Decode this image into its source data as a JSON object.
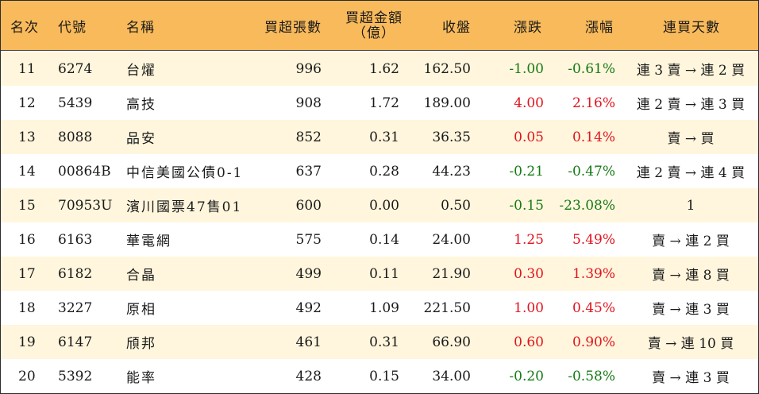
{
  "headers": {
    "rank": "名次",
    "code": "代號",
    "name": "名稱",
    "net_buy_lots": "買超張數",
    "net_buy_amount_line1": "買超金額",
    "net_buy_amount_line2": "（億）",
    "close": "收盤",
    "change": "漲跌",
    "change_pct": "漲幅",
    "streak": "連買天數"
  },
  "rows": [
    {
      "rank": "11",
      "code": "6274",
      "name": "台燿",
      "lots": "996",
      "amount": "1.62",
      "close": "162.50",
      "change": "-1.00",
      "pct": "-0.61%",
      "streak": "連 3 賣 → 連 2 買",
      "dir": "neg"
    },
    {
      "rank": "12",
      "code": "5439",
      "name": "高技",
      "lots": "908",
      "amount": "1.72",
      "close": "189.00",
      "change": "4.00",
      "pct": "2.16%",
      "streak": "連 2 賣 → 連 3 買",
      "dir": "pos"
    },
    {
      "rank": "13",
      "code": "8088",
      "name": "品安",
      "lots": "852",
      "amount": "0.31",
      "close": "36.35",
      "change": "0.05",
      "pct": "0.14%",
      "streak": "賣 → 買",
      "dir": "pos"
    },
    {
      "rank": "14",
      "code": "00864B",
      "name": "中信美國公債0-1",
      "lots": "637",
      "amount": "0.28",
      "close": "44.23",
      "change": "-0.21",
      "pct": "-0.47%",
      "streak": "連 2 賣 → 連 4 買",
      "dir": "neg"
    },
    {
      "rank": "15",
      "code": "70953U",
      "name": "濱川國票47售01",
      "lots": "600",
      "amount": "0.00",
      "close": "0.50",
      "change": "-0.15",
      "pct": "-23.08%",
      "streak": "1",
      "dir": "neg"
    },
    {
      "rank": "16",
      "code": "6163",
      "name": "華電網",
      "lots": "575",
      "amount": "0.14",
      "close": "24.00",
      "change": "1.25",
      "pct": "5.49%",
      "streak": "賣 → 連 2 買",
      "dir": "pos"
    },
    {
      "rank": "17",
      "code": "6182",
      "name": "合晶",
      "lots": "499",
      "amount": "0.11",
      "close": "21.90",
      "change": "0.30",
      "pct": "1.39%",
      "streak": "賣 → 連 8 買",
      "dir": "pos"
    },
    {
      "rank": "18",
      "code": "3227",
      "name": "原相",
      "lots": "492",
      "amount": "1.09",
      "close": "221.50",
      "change": "1.00",
      "pct": "0.45%",
      "streak": "賣 → 連 3 買",
      "dir": "pos"
    },
    {
      "rank": "19",
      "code": "6147",
      "name": "頎邦",
      "lots": "461",
      "amount": "0.31",
      "close": "66.90",
      "change": "0.60",
      "pct": "0.90%",
      "streak": "賣 → 連 10 買",
      "dir": "pos"
    },
    {
      "rank": "20",
      "code": "5392",
      "name": "能率",
      "lots": "428",
      "amount": "0.15",
      "close": "34.00",
      "change": "-0.20",
      "pct": "-0.58%",
      "streak": "賣 → 連 3 買",
      "dir": "neg"
    }
  ],
  "colors": {
    "header_bg": "#f9ba5b",
    "odd_row_bg": "#fff6dd",
    "up": "#e0141e",
    "down": "#157a15"
  }
}
